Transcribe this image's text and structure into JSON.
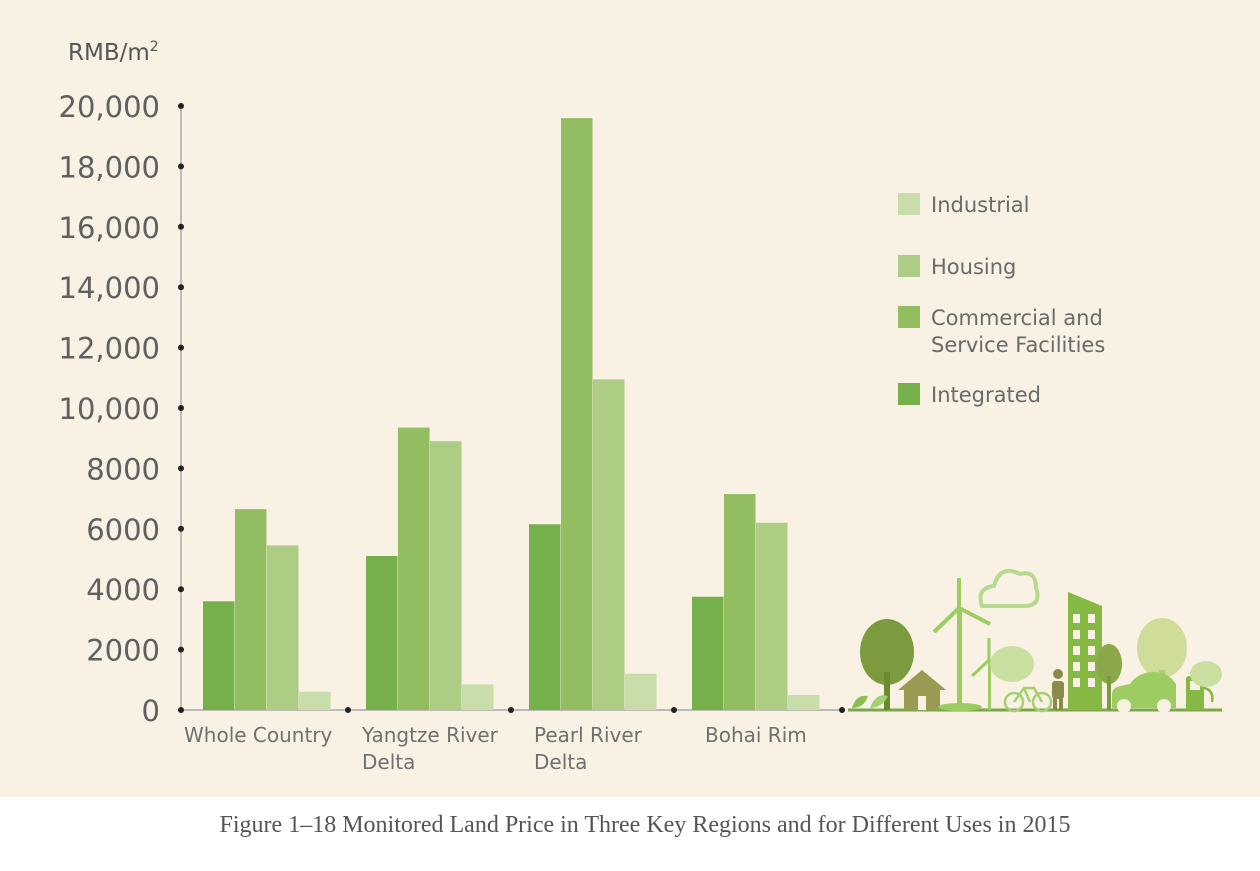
{
  "caption": "Figure 1–18 Monitored Land Price in Three Key Regions and for Different Uses in 2015",
  "chart_data": {
    "type": "bar",
    "unit": "RMB/m",
    "unit_superscript": "2",
    "categories": [
      [
        "Whole Country"
      ],
      [
        "Yangtze River",
        "Delta"
      ],
      [
        "Pearl River",
        "Delta"
      ],
      [
        "Bohai Rim"
      ]
    ],
    "y_ticks": [
      "0",
      "2000",
      "4000",
      "6000",
      "8000",
      "10,000",
      "12,000",
      "14,000",
      "16,000",
      "18,000",
      "20,000"
    ],
    "ylim": [
      0,
      20000
    ],
    "legend": {
      "position": "right",
      "entries": [
        {
          "label": [
            "Industrial"
          ],
          "color": "#c9ddaa"
        },
        {
          "label": [
            "Housing"
          ],
          "color": "#adcd84"
        },
        {
          "label": [
            "Commercial and",
            "Service Facilities"
          ],
          "color": "#93bd61"
        },
        {
          "label": [
            "Integrated"
          ],
          "color": "#76b04b"
        }
      ]
    },
    "series": [
      {
        "name": "Integrated",
        "color": "#76b04b",
        "values": [
          3600,
          5100,
          6150,
          3750
        ]
      },
      {
        "name": "Commercial and Service Facilities",
        "color": "#93bd61",
        "values": [
          6650,
          9350,
          19600,
          7150
        ]
      },
      {
        "name": "Housing",
        "color": "#adcd84",
        "values": [
          5450,
          8900,
          10950,
          6200
        ]
      },
      {
        "name": "Industrial",
        "color": "#c9ddaa",
        "values": [
          600,
          850,
          1200,
          500
        ]
      }
    ],
    "grid": false
  },
  "illustration": {
    "description_icon": "green-city-illustration-icon"
  }
}
